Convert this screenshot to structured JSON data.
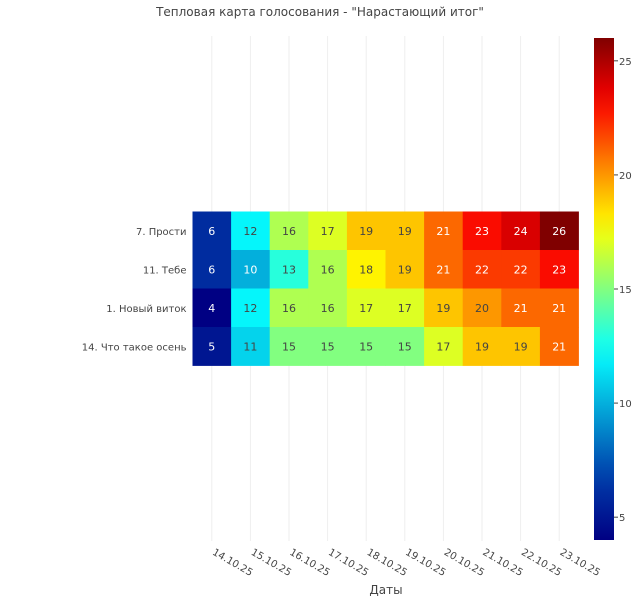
{
  "chart_data": {
    "type": "heatmap",
    "title": "Тепловая карта голосования - \"Нарастающий итог\"",
    "xlabel": "Даты",
    "ylabel": "",
    "x": [
      "14.10.25",
      "15.10.25",
      "16.10.25",
      "17.10.25",
      "18.10.25",
      "19.10.25",
      "20.10.25",
      "21.10.25",
      "22.10.25",
      "23.10.25"
    ],
    "y": [
      "7. Прости",
      "11. Тебе",
      "1. Новый виток",
      "14. Что такое осень"
    ],
    "z": [
      [
        6,
        12,
        16,
        17,
        19,
        19,
        21,
        23,
        24,
        26
      ],
      [
        6,
        10,
        13,
        16,
        18,
        19,
        21,
        22,
        22,
        23
      ],
      [
        4,
        12,
        16,
        16,
        17,
        17,
        19,
        20,
        21,
        21
      ],
      [
        5,
        11,
        15,
        15,
        15,
        15,
        17,
        19,
        19,
        21
      ]
    ],
    "colorscale": "jet",
    "zmin": 4,
    "zmax": 26,
    "colorbar_ticks": [
      5,
      10,
      15,
      20,
      25
    ]
  }
}
